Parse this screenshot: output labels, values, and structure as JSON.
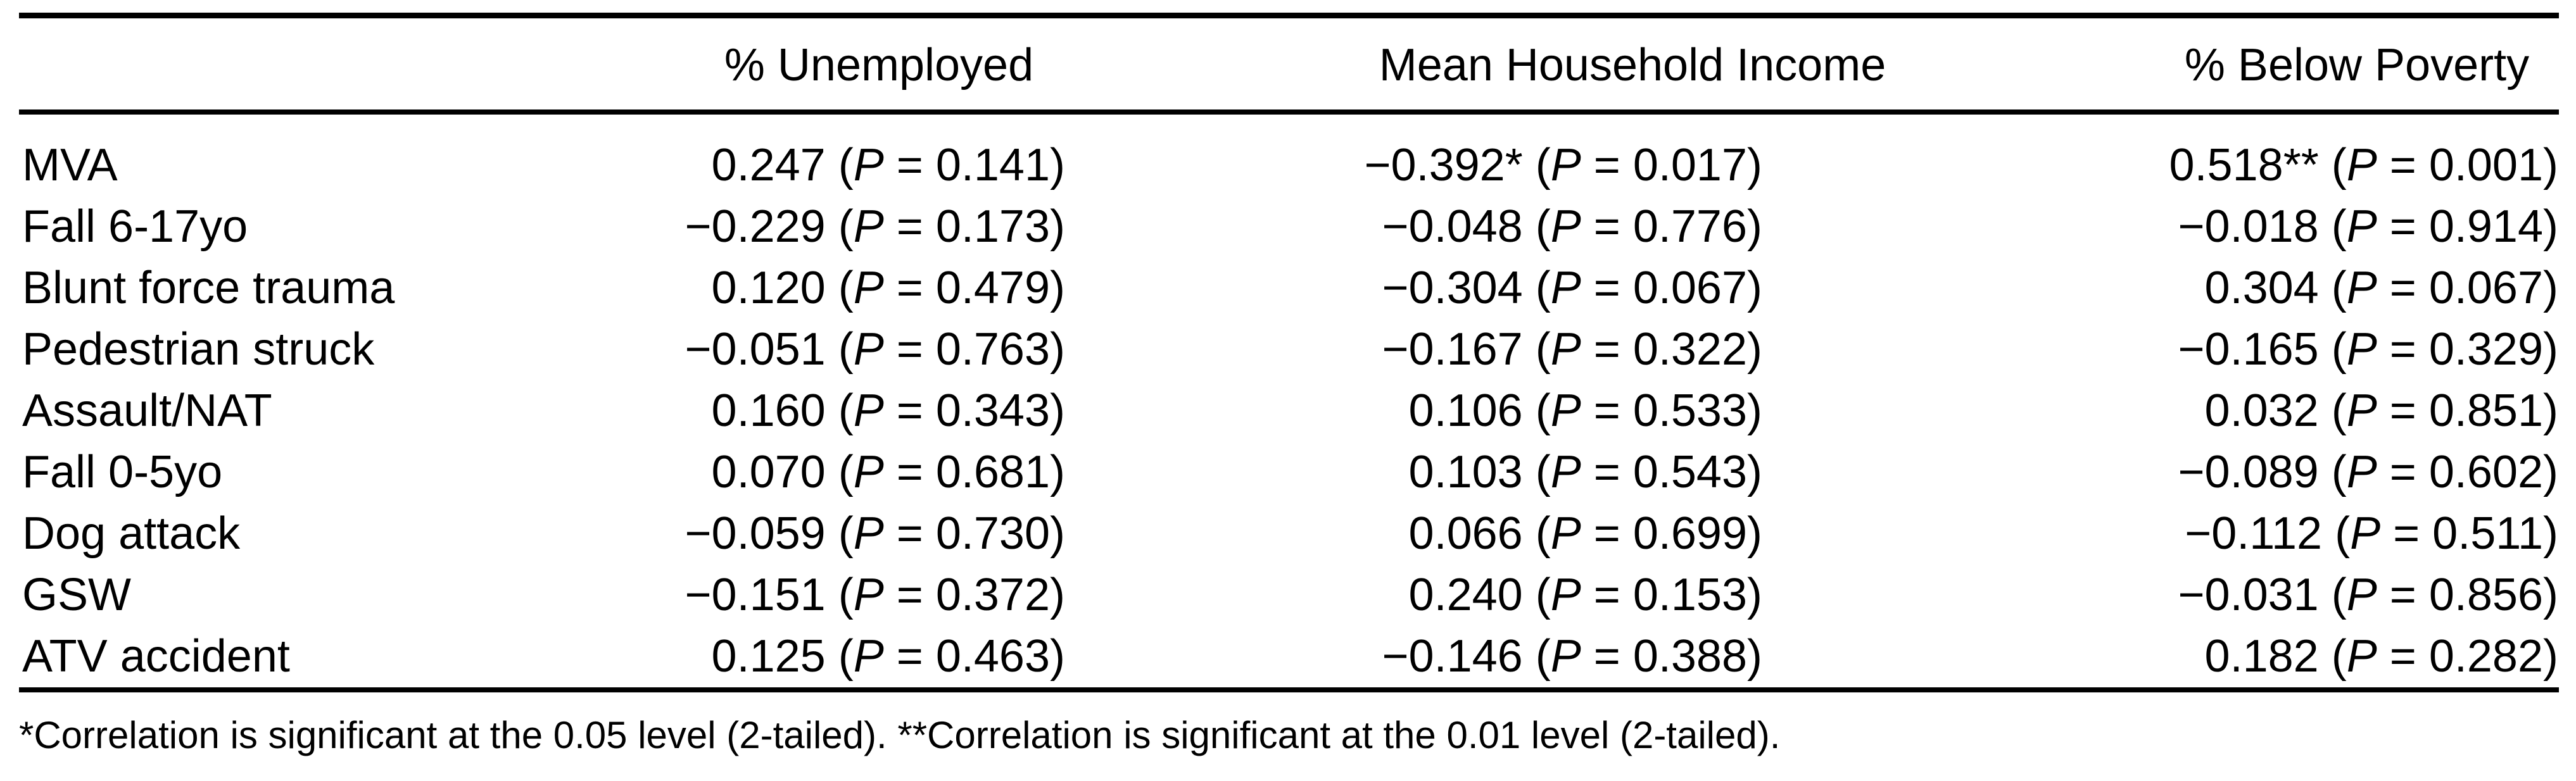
{
  "table": {
    "columns": [
      "% Unemployed",
      "Mean Household Income",
      "% Below Poverty"
    ],
    "p_notation": {
      "open": "(",
      "label": "P",
      "eq": " = ",
      "close": ")"
    },
    "rows": [
      {
        "label": "MVA",
        "cells": [
          {
            "r": "0.247",
            "stars": "",
            "p": "0.141"
          },
          {
            "r": "−0.392",
            "stars": "*",
            "p": "0.017"
          },
          {
            "r": "0.518",
            "stars": "**",
            "p": "0.001"
          }
        ]
      },
      {
        "label": "Fall 6-17yo",
        "cells": [
          {
            "r": "−0.229",
            "stars": "",
            "p": "0.173"
          },
          {
            "r": "−0.048",
            "stars": "",
            "p": "0.776"
          },
          {
            "r": "−0.018",
            "stars": "",
            "p": "0.914"
          }
        ]
      },
      {
        "label": "Blunt force trauma",
        "cells": [
          {
            "r": "0.120",
            "stars": "",
            "p": "0.479"
          },
          {
            "r": "−0.304",
            "stars": "",
            "p": "0.067"
          },
          {
            "r": "0.304",
            "stars": "",
            "p": "0.067"
          }
        ]
      },
      {
        "label": "Pedestrian struck",
        "cells": [
          {
            "r": "−0.051",
            "stars": "",
            "p": "0.763"
          },
          {
            "r": "−0.167",
            "stars": "",
            "p": "0.322"
          },
          {
            "r": "−0.165",
            "stars": "",
            "p": "0.329"
          }
        ]
      },
      {
        "label": "Assault/NAT",
        "cells": [
          {
            "r": "0.160",
            "stars": "",
            "p": "0.343"
          },
          {
            "r": "0.106",
            "stars": "",
            "p": "0.533"
          },
          {
            "r": "0.032",
            "stars": "",
            "p": "0.851"
          }
        ]
      },
      {
        "label": "Fall 0-5yo",
        "cells": [
          {
            "r": "0.070",
            "stars": "",
            "p": "0.681"
          },
          {
            "r": "0.103",
            "stars": "",
            "p": "0.543"
          },
          {
            "r": "−0.089",
            "stars": "",
            "p": "0.602"
          }
        ]
      },
      {
        "label": "Dog attack",
        "cells": [
          {
            "r": "−0.059",
            "stars": "",
            "p": "0.730"
          },
          {
            "r": "0.066",
            "stars": "",
            "p": "0.699"
          },
          {
            "r": "−0.112",
            "stars": "",
            "p": "0.511"
          }
        ]
      },
      {
        "label": "GSW",
        "cells": [
          {
            "r": "−0.151",
            "stars": "",
            "p": "0.372"
          },
          {
            "r": "0.240",
            "stars": "",
            "p": "0.153"
          },
          {
            "r": "−0.031",
            "stars": "",
            "p": "0.856"
          }
        ]
      },
      {
        "label": "ATV accident",
        "cells": [
          {
            "r": "0.125",
            "stars": "",
            "p": "0.463"
          },
          {
            "r": "−0.146",
            "stars": "",
            "p": "0.388"
          },
          {
            "r": "0.182",
            "stars": "",
            "p": "0.282"
          }
        ]
      }
    ],
    "footnote": "*Correlation is significant at the 0.05 level (2-tailed). **Correlation is significant at the 0.01 level (2-tailed)."
  }
}
